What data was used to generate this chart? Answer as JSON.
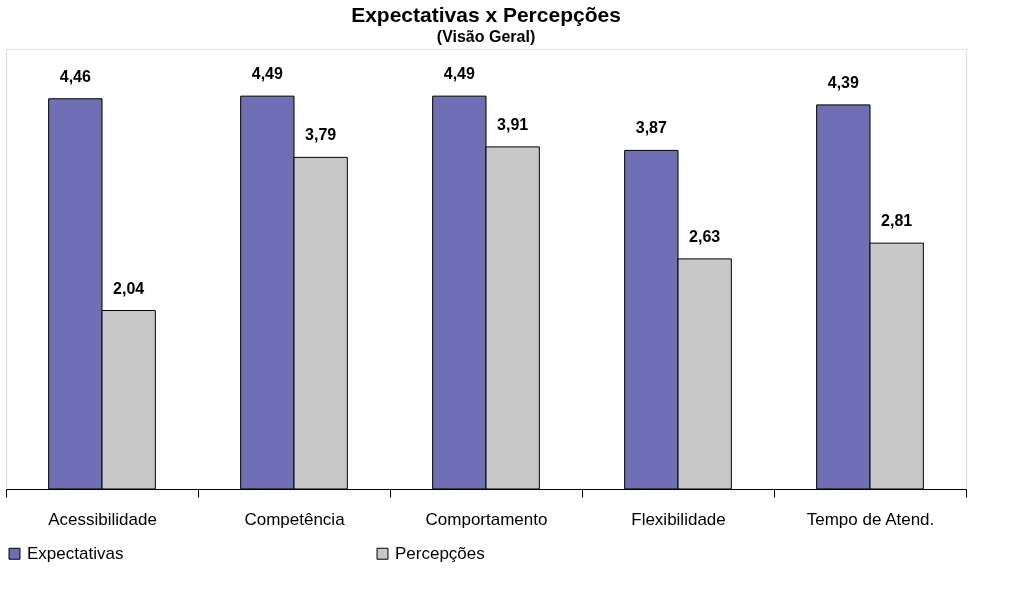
{
  "chart_data": {
    "type": "bar",
    "title": "Expectativas x Percepções",
    "subtitle": "(Visão Geral)",
    "categories": [
      "Acessibilidade",
      "Competência",
      "Comportamento",
      "Flexibilidade",
      "Tempo de Atend."
    ],
    "series": [
      {
        "name": "Expectativas",
        "color": "#6f6fb5",
        "values": [
          4.46,
          4.49,
          4.49,
          3.87,
          4.39
        ],
        "value_labels": [
          "4,46",
          "4,49",
          "4,49",
          "3,87",
          "4,39"
        ]
      },
      {
        "name": "Percepções",
        "color": "#c8c8c8",
        "values": [
          2.04,
          3.79,
          3.91,
          2.63,
          2.81
        ],
        "value_labels": [
          "2,04",
          "3,79",
          "3,91",
          "2,63",
          "2,81"
        ]
      }
    ],
    "grid": false,
    "legend": "bottom"
  }
}
